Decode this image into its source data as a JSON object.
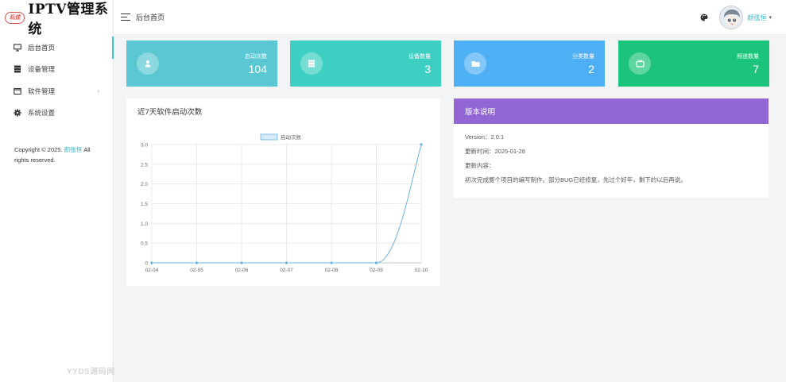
{
  "app": {
    "logo_badge": "玩佳",
    "logo_text": "IPTV管理系统"
  },
  "sidebar": {
    "items": [
      {
        "label": "后台首页",
        "icon": "monitor-icon",
        "active": true
      },
      {
        "label": "设备管理",
        "icon": "server-icon"
      },
      {
        "label": "软件管理",
        "icon": "window-icon",
        "has_arrow": true
      },
      {
        "label": "系统设置",
        "icon": "gear-icon"
      }
    ],
    "copyright_prefix": "Copyright © 2025.",
    "copyright_author": "颜弦恒",
    "copyright_suffix": "All rights reserved.",
    "watermark": "YYDS源码网"
  },
  "header": {
    "title": "后台首页",
    "user_name": "颜弦恒",
    "caret": "▾"
  },
  "stats": [
    {
      "label": "启动次数",
      "value": "104",
      "color": "#5bc7d3",
      "icon": "user-icon"
    },
    {
      "label": "设备数量",
      "value": "3",
      "color": "#3ccfc2",
      "icon": "server-icon"
    },
    {
      "label": "分类数量",
      "value": "2",
      "color": "#4eaff5",
      "icon": "folder-icon"
    },
    {
      "label": "频道数量",
      "value": "7",
      "color": "#1bc47a",
      "icon": "tv-icon"
    }
  ],
  "chart_panel": {
    "title": "近7天软件启动次数"
  },
  "version_panel": {
    "title": "版本说明",
    "version": "Version：2.0.1",
    "update_time": "更新时间：2025-01-28",
    "update_content_label": "更新内容：",
    "update_content": "初次完成整个项目的编写制作。部分BUG已经修复，先过个好年，剩下的以后再说。"
  },
  "chart_data": {
    "type": "line",
    "categories": [
      "02-04",
      "02-05",
      "02-06",
      "02-07",
      "02-08",
      "02-09",
      "02-10"
    ],
    "series": [
      {
        "name": "启动次数",
        "values": [
          0,
          0,
          0,
          0,
          0,
          0,
          3
        ]
      }
    ],
    "ylim": [
      0,
      3
    ],
    "yticks": [
      "0",
      "0.5",
      "1.0",
      "1.5",
      "2.0",
      "2.5",
      "3.0"
    ],
    "grid": true,
    "legend": "top",
    "line_color": "#6bb3e0",
    "fill_color": "#d6eaf8"
  }
}
